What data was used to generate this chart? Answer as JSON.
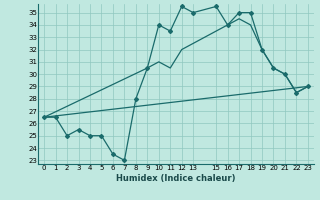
{
  "xlabel": "Humidex (Indice chaleur)",
  "bg_color": "#c0e8e0",
  "line_color": "#1a6b6b",
  "grid_color": "#90c8c0",
  "xlim": [
    -0.5,
    23.5
  ],
  "ylim": [
    22.7,
    35.7
  ],
  "yticks": [
    23,
    24,
    25,
    26,
    27,
    28,
    29,
    30,
    31,
    32,
    33,
    34,
    35
  ],
  "xticks": [
    0,
    1,
    2,
    3,
    4,
    5,
    6,
    7,
    8,
    9,
    10,
    11,
    12,
    13,
    15,
    16,
    17,
    18,
    19,
    20,
    21,
    22,
    23
  ],
  "xtick_labels": [
    "0",
    "1",
    "2",
    "3",
    "4",
    "5",
    "6",
    "7",
    "8",
    "9",
    "10",
    "11",
    "12",
    "13",
    "15",
    "16",
    "17",
    "18",
    "19",
    "20",
    "21",
    "22",
    "23"
  ],
  "line1_x": [
    0,
    1,
    2,
    3,
    4,
    5,
    6,
    7,
    8,
    9,
    10,
    11,
    12,
    13,
    15,
    16,
    17,
    18,
    19,
    20,
    21,
    22,
    23
  ],
  "line1_y": [
    26.5,
    26.5,
    25.0,
    25.5,
    25.0,
    25.0,
    23.5,
    23.0,
    28.0,
    30.5,
    34.0,
    33.5,
    35.5,
    35.0,
    35.5,
    34.0,
    35.0,
    35.0,
    32.0,
    30.5,
    30.0,
    28.5,
    29.0
  ],
  "line2_x": [
    0,
    9,
    10,
    11,
    12,
    13,
    15,
    16,
    17,
    18,
    19,
    20,
    21,
    22,
    23
  ],
  "line2_y": [
    26.5,
    30.5,
    31.0,
    30.5,
    32.0,
    32.5,
    33.5,
    34.0,
    34.5,
    34.0,
    32.0,
    30.5,
    30.0,
    28.5,
    29.0
  ],
  "line3_x": [
    0,
    23
  ],
  "line3_y": [
    26.5,
    29.0
  ]
}
